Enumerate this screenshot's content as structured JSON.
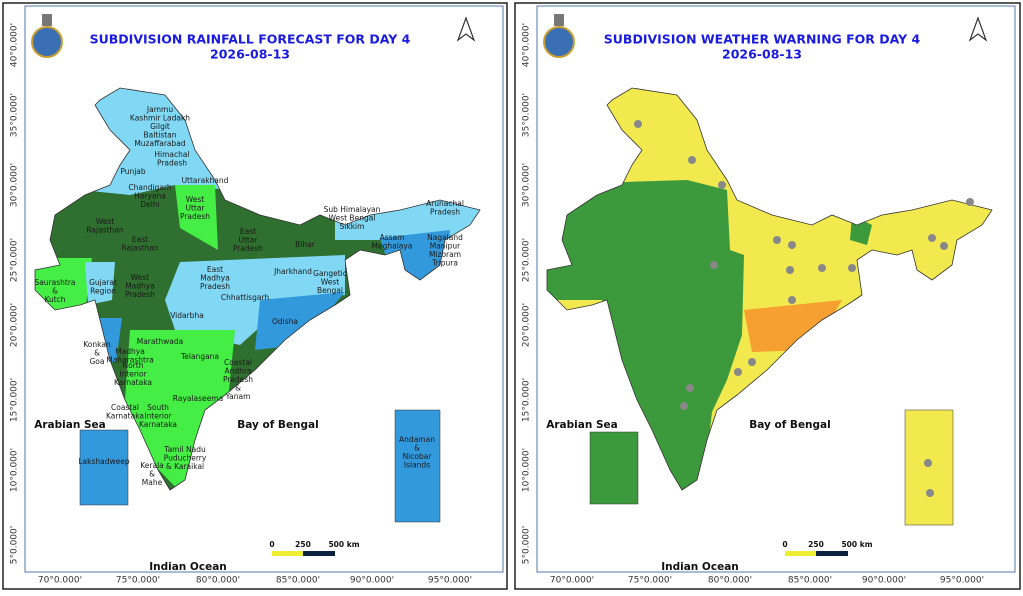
{
  "panels": [
    {
      "title": "SUBDIVISION RAINFALL FORECAST FOR DAY 4",
      "date": "2026-08-13",
      "lat_labels": [
        "40°0.000'",
        "35°0.000'",
        "30°0.000'",
        "25°0.000'",
        "20°0.000'",
        "15°0.000'",
        "10°0.000'",
        "5°0.000'"
      ],
      "lon_labels": [
        "70°0.000'",
        "75°0.000'",
        "80°0.000'",
        "85°0.000'",
        "90°0.000'",
        "95°0.000'"
      ],
      "seas": [
        "Arabian Sea",
        "Bay of Bengal",
        "Indian Ocean"
      ],
      "scale": [
        "0",
        "250",
        "500 km"
      ],
      "regions": [
        [
          "Jammu",
          "Kashmir Ladakh",
          "Gilgit",
          "Baltistan",
          "Muzaffarabad"
        ],
        [
          "Himachal",
          "Pradesh"
        ],
        [
          "Punjab"
        ],
        [
          "Uttarakhand"
        ],
        [
          "Chandigarh",
          "Haryana",
          "Delhi"
        ],
        [
          "West",
          "Uttar",
          "Pradesh"
        ],
        [
          "East",
          "Uttar",
          "Pradesh"
        ],
        [
          "West",
          "Rajasthan"
        ],
        [
          "East",
          "Rajasthan"
        ],
        [
          "Bihar"
        ],
        [
          "Sub Himalayan",
          "West Bengal",
          "Sikkim"
        ],
        [
          "Arunachal",
          "Pradesh"
        ],
        [
          "Assam",
          "Meghalaya"
        ],
        [
          "Nagaland",
          "Manipur",
          "Mizoram",
          "Tripura"
        ],
        [
          "Gangetic",
          "West",
          "Bengal"
        ],
        [
          "Jharkhand"
        ],
        [
          "East",
          "Madhya",
          "Pradesh"
        ],
        [
          "West",
          "Madhya",
          "Pradesh"
        ],
        [
          "Gujarat",
          "Region"
        ],
        [
          "Saurashtra",
          "&",
          "Kutch"
        ],
        [
          "Chhattisgarh"
        ],
        [
          "Vidarbha"
        ],
        [
          "Odisha"
        ],
        [
          "Konkan",
          "&",
          "Goa"
        ],
        [
          "Madhya",
          "Maharashtra"
        ],
        [
          "Marathwada"
        ],
        [
          "Telangana"
        ],
        [
          "North",
          "Interior",
          "Karnataka"
        ],
        [
          "Coastal",
          "Andhra",
          "Pradesh",
          "&",
          "Yanam"
        ],
        [
          "Rayalaseema"
        ],
        [
          "Coastal",
          "Karnataka"
        ],
        [
          "South",
          "Interior",
          "Karnataka"
        ],
        [
          "Tamil Nadu",
          "Puducherry",
          "& Karaikal"
        ],
        [
          "Kerala",
          "&",
          "Mahe"
        ],
        [
          "Lakshadweep"
        ],
        [
          "Andaman",
          "&",
          "Nicobar",
          "Islands"
        ]
      ]
    },
    {
      "title": "SUBDIVISION WEATHER WARNING FOR DAY 4",
      "date": "2026-08-13",
      "lat_labels": [
        "40°0.000'",
        "35°0.000'",
        "30°0.000'",
        "25°0.000'",
        "20°0.000'",
        "15°0.000'",
        "10°0.000'",
        "5°0.000'"
      ],
      "lon_labels": [
        "70°0.000'",
        "75°0.000'",
        "80°0.000'",
        "85°0.000'",
        "90°0.000'",
        "95°0.000'"
      ],
      "seas": [
        "Arabian Sea",
        "Bay of Bengal",
        "Indian Ocean"
      ],
      "scale": [
        "0",
        "250",
        "500 km"
      ]
    }
  ]
}
